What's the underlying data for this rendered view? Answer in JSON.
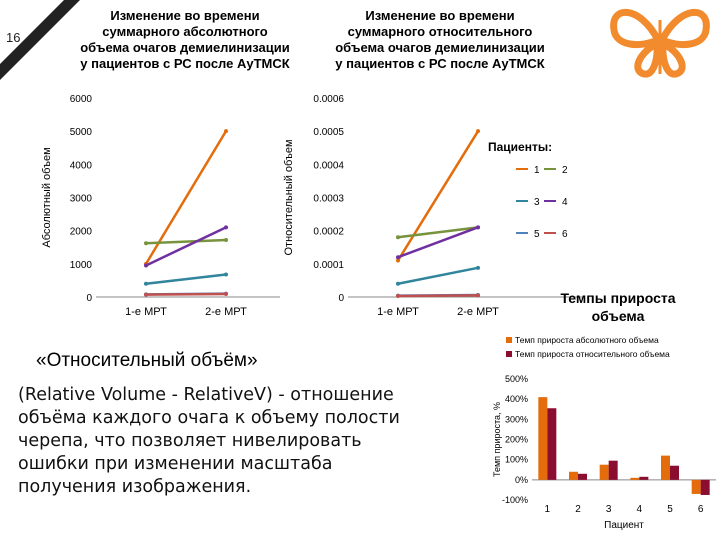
{
  "slide": {
    "number": "16"
  },
  "colors": {
    "c1": "#e46c0a",
    "c2": "#77933c",
    "c3": "#31859c",
    "c4": "#7030a0",
    "c5": "#4f81bd",
    "c6": "#c0504d",
    "bar_abs": "#e46c0a",
    "bar_rel": "#8b0d2f",
    "logo": "#f28a2e"
  },
  "text": {
    "quote": "«Относительный объём»",
    "description": "(Relative Volume - RelativeV) - отношение объёма каждого очага к объему полости черепа, что позволяет нивелировать ошибки при изменении масштаба получения изображения."
  },
  "chart_data": [
    {
      "type": "line",
      "title": "Изменение во времени суммарного абсолютного объема очагов демиелинизации у пациентов с РС после АуТМСК",
      "ylabel": "Абсолютный объем",
      "categories": [
        "1-е МРТ",
        "2-е МРТ"
      ],
      "ylim": [
        0,
        6000
      ],
      "yticks": [
        "0",
        "1000",
        "2000",
        "3000",
        "4000",
        "5000",
        "6000"
      ],
      "series": [
        {
          "name": "1",
          "values": [
            1000,
            5000
          ],
          "color": "#e46c0a"
        },
        {
          "name": "2",
          "values": [
            1620,
            1720
          ],
          "color": "#77933c"
        },
        {
          "name": "3",
          "values": [
            400,
            680
          ],
          "color": "#31859c"
        },
        {
          "name": "4",
          "values": [
            950,
            2100
          ],
          "color": "#7030a0"
        },
        {
          "name": "5",
          "values": [
            80,
            100
          ],
          "color": "#4f81bd"
        },
        {
          "name": "6",
          "values": [
            70,
            90
          ],
          "color": "#c0504d"
        }
      ]
    },
    {
      "type": "line",
      "title": "Изменение во времени суммарного относительного объема очагов демиелинизации у пациентов с РС после АуТМСК",
      "ylabel": "Относительный объем",
      "categories": [
        "1-е МРТ",
        "2-е МРТ"
      ],
      "ylim": [
        0,
        0.0006
      ],
      "yticks": [
        "0",
        "0.0001",
        "0.0002",
        "0.0003",
        "0.0004",
        "0.0005",
        "0.0006"
      ],
      "legend_title": "Пациенты:",
      "legend": [
        "1",
        "2",
        "3",
        "4",
        "5",
        "6"
      ],
      "series": [
        {
          "name": "1",
          "values": [
            0.00011,
            0.0005
          ],
          "color": "#e46c0a"
        },
        {
          "name": "2",
          "values": [
            0.00018,
            0.00021
          ],
          "color": "#77933c"
        },
        {
          "name": "3",
          "values": [
            4e-05,
            8.8e-05
          ],
          "color": "#31859c"
        },
        {
          "name": "4",
          "values": [
            0.00012,
            0.00021
          ],
          "color": "#7030a0"
        },
        {
          "name": "5",
          "values": [
            4e-06,
            6e-06
          ],
          "color": "#4f81bd"
        },
        {
          "name": "6",
          "values": [
            3e-06,
            5e-06
          ],
          "color": "#c0504d"
        }
      ]
    },
    {
      "type": "bar",
      "title": "Темпы прироста объема",
      "xlabel": "Пациент",
      "ylabel": "Темп прироста, %",
      "categories": [
        "1",
        "2",
        "3",
        "4",
        "5",
        "6"
      ],
      "ylim": [
        -100,
        500
      ],
      "yticks": [
        "-100%",
        "0%",
        "100%",
        "200%",
        "300%",
        "400%",
        "500%"
      ],
      "series": [
        {
          "name": "Темп прироста абсолютного объема",
          "values": [
            410,
            40,
            75,
            10,
            120,
            -70
          ],
          "color": "#e46c0a"
        },
        {
          "name": "Темп прироста относительного объема",
          "values": [
            355,
            30,
            95,
            15,
            70,
            -75
          ],
          "color": "#8b0d2f"
        }
      ]
    }
  ]
}
